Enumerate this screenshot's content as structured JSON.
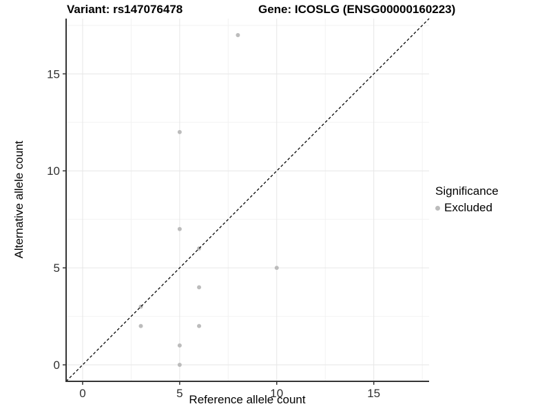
{
  "title": {
    "variant": "Variant: rs147076478",
    "gene": "Gene: ICOSLG (ENSG00000160223)"
  },
  "legend": {
    "title": "Significance",
    "items": [
      {
        "label": "Excluded",
        "color": "#bcbcbc"
      }
    ]
  },
  "colors": {
    "background": "#ffffff",
    "grid_major": "#e6e6e6",
    "grid_minor": "#f2f2f2",
    "axis_line": "#333333",
    "tick_label": "#303030",
    "point": "#bcbcbc",
    "identity_line": "#000000"
  },
  "chart_data": {
    "type": "scatter",
    "title": "Variant: rs147076478   Gene: ICOSLG (ENSG00000160223)",
    "xlabel": "Reference allele count",
    "ylabel": "Alternative allele count",
    "xlim": [
      -0.85,
      17.85
    ],
    "ylim": [
      -0.85,
      17.85
    ],
    "x_ticks": [
      0,
      5,
      10,
      15
    ],
    "y_ticks": [
      0,
      5,
      10,
      15
    ],
    "x_minor_ticks": [
      2.5,
      7.5,
      12.5,
      17.5
    ],
    "y_minor_ticks": [
      2.5,
      7.5,
      12.5,
      17.5
    ],
    "grid": true,
    "legend_position": "right",
    "legend_title": "Significance",
    "series": [
      {
        "name": "Excluded",
        "color": "#bcbcbc",
        "points": [
          [
            3,
            2
          ],
          [
            3,
            3
          ],
          [
            5,
            0
          ],
          [
            5,
            1
          ],
          [
            5,
            7
          ],
          [
            5,
            12
          ],
          [
            6,
            2
          ],
          [
            6,
            4
          ],
          [
            6,
            6
          ],
          [
            8,
            17
          ],
          [
            10,
            5
          ]
        ]
      }
    ],
    "reference_line": {
      "type": "identity",
      "slope": 1,
      "intercept": 0,
      "style": "dashed",
      "color": "#000000"
    }
  }
}
